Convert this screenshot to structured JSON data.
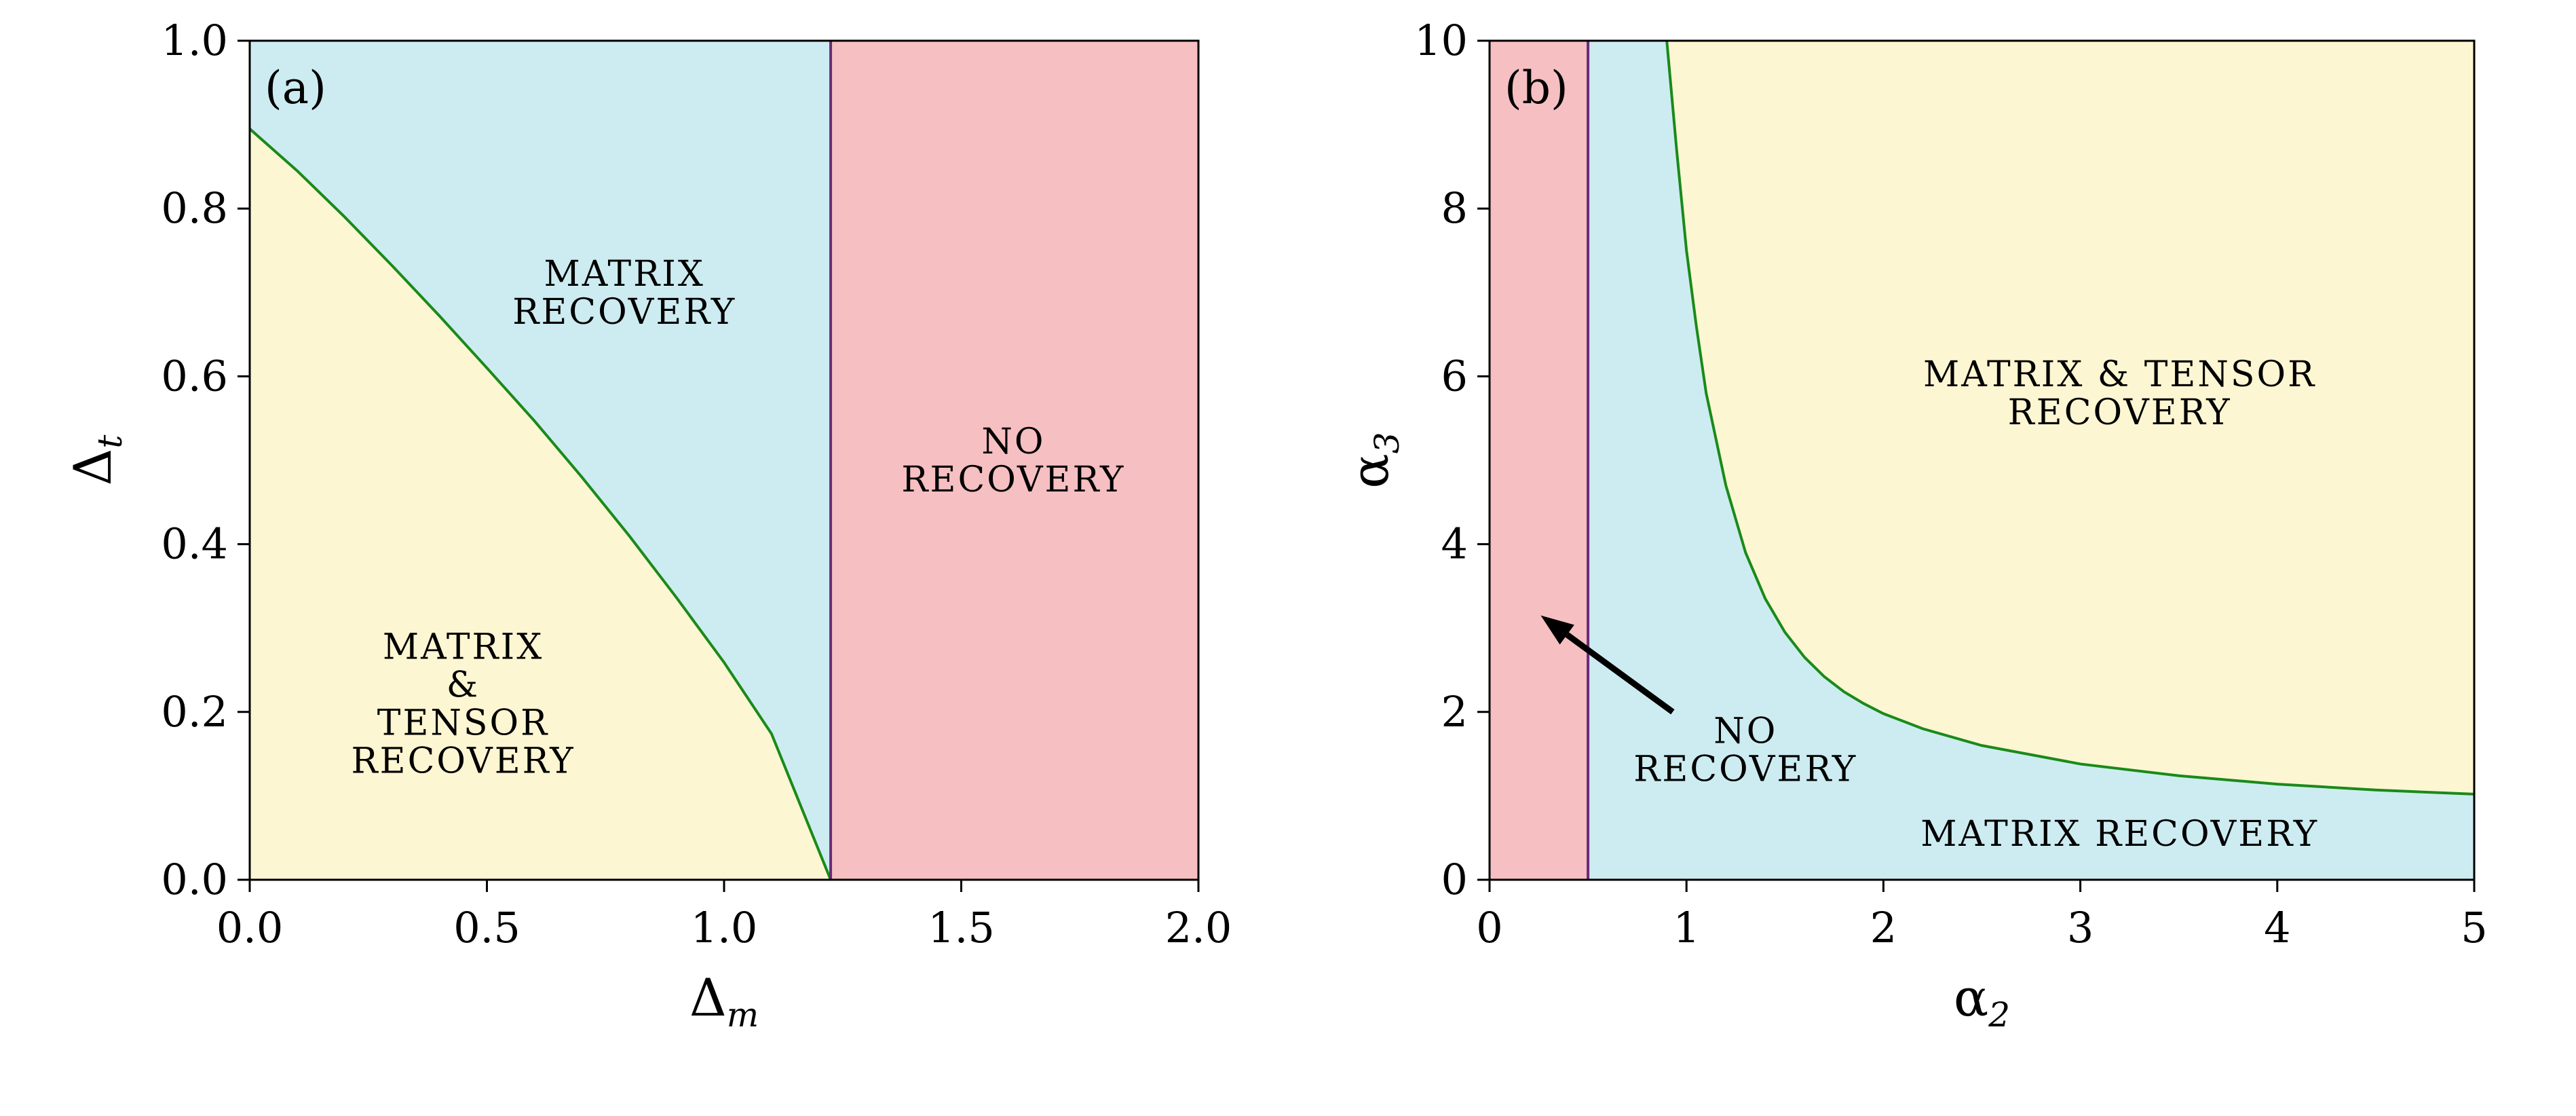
{
  "chart_data": [
    {
      "type": "area",
      "panel_label": "(a)",
      "xlabel": {
        "base": "Δ",
        "sub": "m"
      },
      "ylabel": {
        "base": "Δ",
        "sub": "t"
      },
      "xlim": [
        0.0,
        2.0
      ],
      "ylim": [
        0.0,
        1.0
      ],
      "xticks": [
        "0.0",
        "0.5",
        "1.0",
        "1.5",
        "2.0"
      ],
      "yticks": [
        "0.0",
        "0.2",
        "0.4",
        "0.6",
        "0.8",
        "1.0"
      ],
      "xtick_values": [
        0.0,
        0.5,
        1.0,
        1.5,
        2.0
      ],
      "ytick_values": [
        0.0,
        0.2,
        0.4,
        0.6,
        0.8,
        1.0
      ],
      "grid": false,
      "colors": {
        "yellow": "#fdf6d2",
        "blue": "#cdecf1",
        "pink": "#f6bfc2",
        "green_line": "#1a8a1a",
        "purple_line": "#6a2a78"
      },
      "boundary_curve": {
        "x": [
          0.0,
          0.1,
          0.2,
          0.3,
          0.4,
          0.5,
          0.6,
          0.7,
          0.8,
          0.9,
          1.0,
          1.1,
          1.2247
        ],
        "y": [
          0.895,
          0.845,
          0.79,
          0.732,
          0.672,
          0.61,
          0.547,
          0.48,
          0.41,
          0.336,
          0.259,
          0.174,
          0.0
        ]
      },
      "vertical_boundary_x": 1.2247,
      "regions": {
        "yellow": [
          "MATRIX",
          "&",
          "TENSOR",
          "RECOVERY"
        ],
        "blue": [
          "MATRIX",
          "RECOVERY"
        ],
        "pink": [
          "NO",
          "RECOVERY"
        ]
      },
      "region_label_positions": {
        "yellow": [
          0.45,
          0.21
        ],
        "blue": [
          0.79,
          0.7
        ],
        "pink": [
          1.61,
          0.5
        ]
      }
    },
    {
      "type": "area",
      "panel_label": "(b)",
      "xlabel": {
        "base": "α",
        "sub": "2"
      },
      "ylabel": {
        "base": "α",
        "sub": "3"
      },
      "xlim": [
        0,
        5
      ],
      "ylim": [
        0,
        10
      ],
      "xticks": [
        "0",
        "1",
        "2",
        "3",
        "4",
        "5"
      ],
      "yticks": [
        "0",
        "2",
        "4",
        "6",
        "8",
        "10"
      ],
      "xtick_values": [
        0,
        1,
        2,
        3,
        4,
        5
      ],
      "ytick_values": [
        0,
        2,
        4,
        6,
        8,
        10
      ],
      "grid": false,
      "colors": {
        "yellow": "#fdf6d2",
        "blue": "#cdecf1",
        "pink": "#f6bfc2",
        "green_line": "#1a8a1a",
        "purple_line": "#6a2a78"
      },
      "boundary_curve": {
        "x": [
          0.9,
          0.95,
          1.0,
          1.05,
          1.1,
          1.2,
          1.3,
          1.4,
          1.5,
          1.6,
          1.7,
          1.8,
          1.9,
          2.0,
          2.2,
          2.5,
          3.0,
          3.5,
          4.0,
          4.5,
          5.0
        ],
        "y": [
          10.0,
          8.7,
          7.5,
          6.6,
          5.8,
          4.7,
          3.9,
          3.35,
          2.95,
          2.65,
          2.42,
          2.24,
          2.1,
          1.98,
          1.8,
          1.6,
          1.38,
          1.24,
          1.14,
          1.07,
          1.02
        ]
      },
      "vertical_boundary_x": 0.5,
      "arrow": {
        "from": [
          0.93,
          2.0
        ],
        "to": [
          0.26,
          3.15
        ]
      },
      "regions": {
        "yellow": [
          "MATRIX & TENSOR",
          "RECOVERY"
        ],
        "blue": [
          "MATRIX RECOVERY"
        ],
        "pink": [
          "NO",
          "RECOVERY"
        ]
      },
      "region_label_positions": {
        "yellow": [
          3.2,
          5.8
        ],
        "blue": [
          3.2,
          0.55
        ],
        "pink": [
          1.3,
          1.55
        ]
      }
    }
  ]
}
